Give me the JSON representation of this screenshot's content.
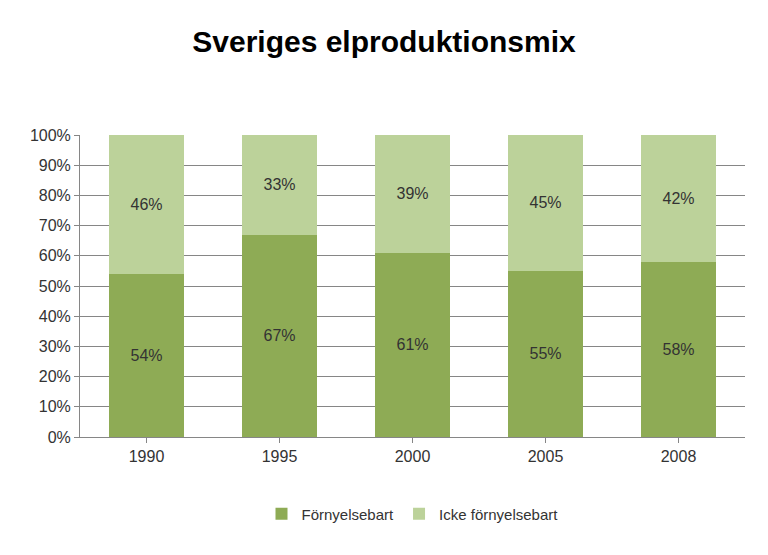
{
  "chart_data": {
    "type": "bar",
    "title": "Sveriges elproduktionsmix",
    "categories": [
      "1990",
      "1995",
      "2000",
      "2005",
      "2008"
    ],
    "series": [
      {
        "name": "Förnyelsebart",
        "color": "#8eab55",
        "values": [
          54,
          67,
          61,
          55,
          58
        ],
        "value_labels": [
          "54%",
          "67%",
          "61%",
          "55%",
          "58%"
        ]
      },
      {
        "name": "Icke förnyelsebart",
        "color": "#bcd29a",
        "values": [
          46,
          33,
          39,
          45,
          42
        ],
        "value_labels": [
          "46%",
          "33%",
          "39%",
          "45%",
          "42%"
        ]
      }
    ],
    "stacked": true,
    "data_labels": true,
    "ylim": [
      0,
      100
    ],
    "yticks": [
      {
        "value": 0,
        "label": "0%"
      },
      {
        "value": 10,
        "label": "10%"
      },
      {
        "value": 20,
        "label": "20%"
      },
      {
        "value": 30,
        "label": "30%"
      },
      {
        "value": 40,
        "label": "40%"
      },
      {
        "value": 50,
        "label": "50%"
      },
      {
        "value": 60,
        "label": "60%"
      },
      {
        "value": 70,
        "label": "70%"
      },
      {
        "value": 80,
        "label": "80%"
      },
      {
        "value": 90,
        "label": "90%"
      },
      {
        "value": 100,
        "label": "100%"
      }
    ],
    "grid": true,
    "legend": "bottom"
  }
}
